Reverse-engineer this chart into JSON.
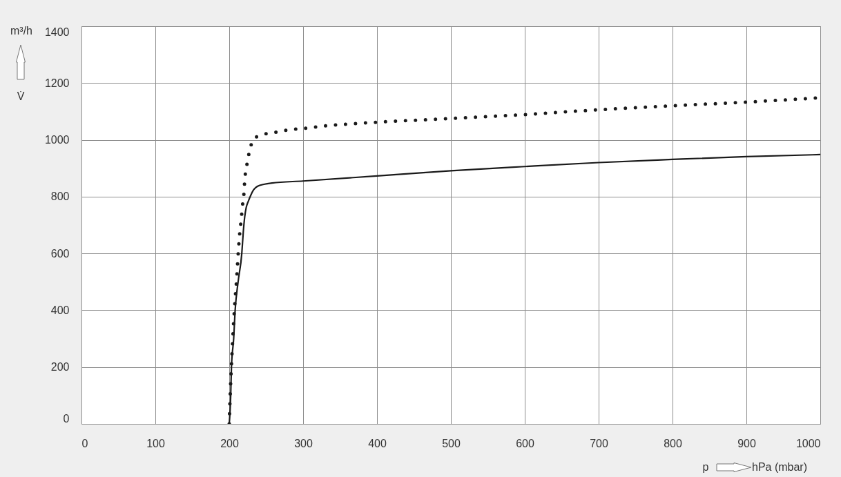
{
  "chart_data": {
    "type": "line",
    "xlabel": "p hPa (mbar)",
    "ylabel": "m³/h V̇",
    "xlim": [
      0,
      1000
    ],
    "ylim": [
      0,
      1400
    ],
    "xticks": [
      0,
      100,
      200,
      300,
      400,
      500,
      600,
      700,
      800,
      900,
      1000
    ],
    "yticks": [
      0,
      200,
      400,
      600,
      800,
      1000,
      1200,
      1400
    ],
    "grid": true,
    "series": [
      {
        "color": "#1a1a1a",
        "line_style": "dotted",
        "x": [
          200,
          202,
          204,
          206,
          208,
          210,
          212,
          214,
          216,
          218,
          220,
          221,
          223,
          225,
          228,
          232,
          244,
          257,
          271,
          284,
          300,
          326,
          400,
          500,
          600,
          700,
          800,
          900,
          1000
        ],
        "values": [
          0,
          150,
          260,
          360,
          440,
          510,
          595,
          665,
          715,
          770,
          815,
          860,
          897,
          930,
          965,
          1000,
          1018,
          1024,
          1031,
          1036,
          1040,
          1048,
          1062,
          1075,
          1089,
          1106,
          1120,
          1133,
          1148
        ]
      },
      {
        "color": "#1a1a1a",
        "line_style": "solid",
        "x": [
          200,
          202,
          203,
          206,
          208,
          212,
          217,
          219,
          221,
          223,
          226,
          229,
          233,
          238,
          248,
          258,
          300,
          400,
          500,
          600,
          700,
          800,
          900,
          1000
        ],
        "values": [
          0,
          100,
          200,
          300,
          400,
          500,
          600,
          675,
          730,
          762,
          785,
          804,
          824,
          836,
          844,
          848,
          855,
          873,
          891,
          906,
          920,
          931,
          941,
          948
        ]
      }
    ]
  }
}
